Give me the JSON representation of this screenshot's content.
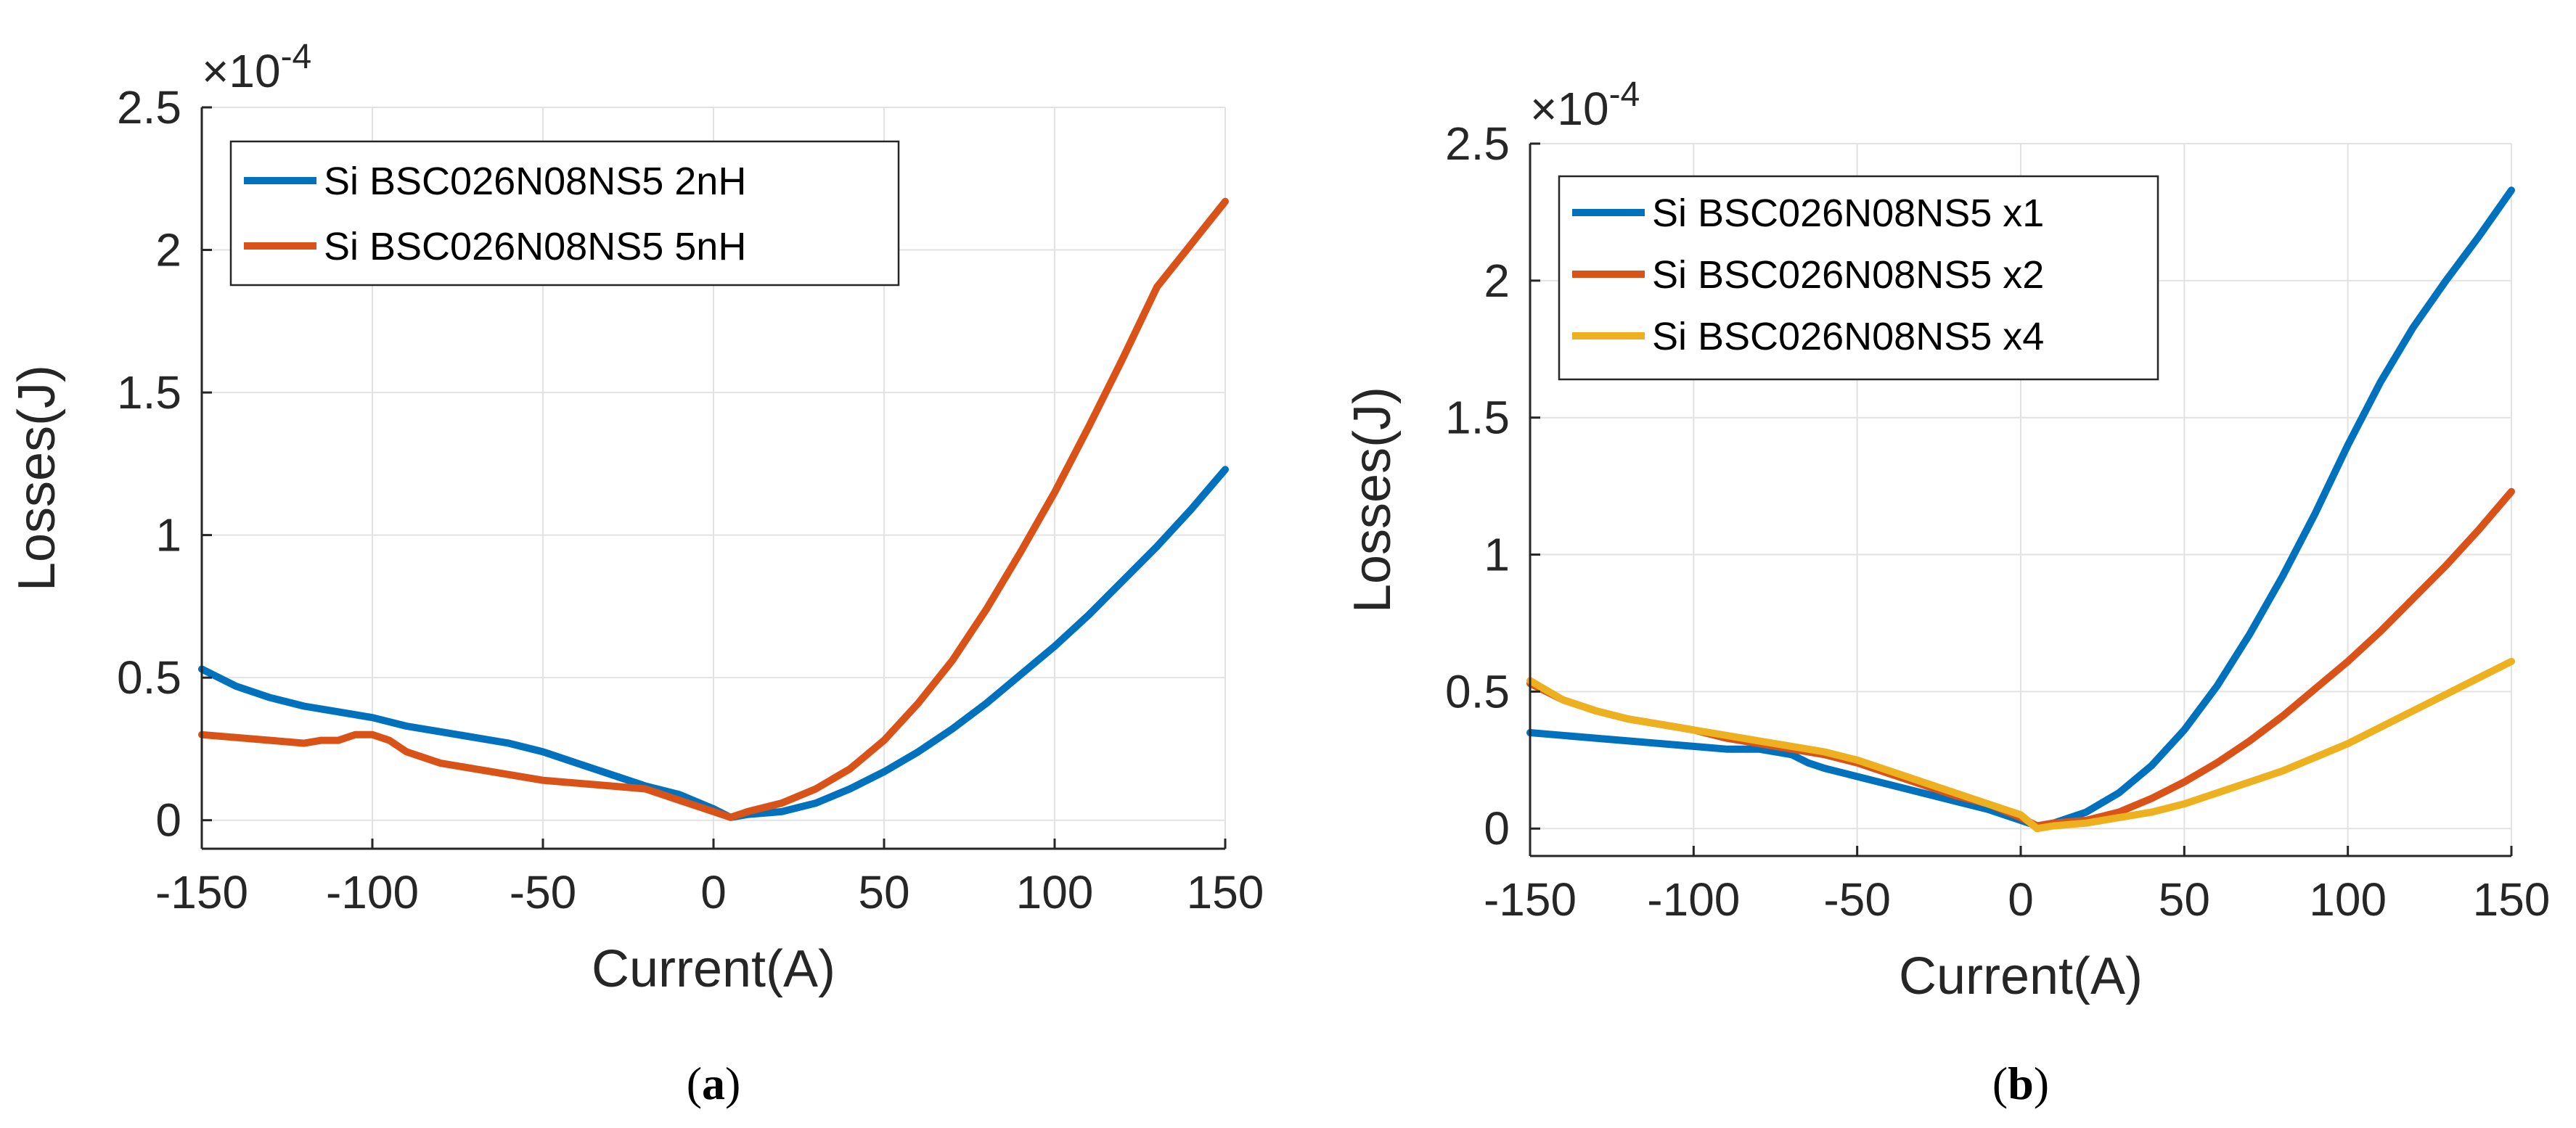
{
  "chart_data": [
    {
      "id": "a",
      "type": "line",
      "caption_open": "(",
      "caption_letter": "a",
      "caption_close": ")",
      "xlabel": "Current(A)",
      "ylabel": "Losses(J)",
      "exponent_base": "×10",
      "exponent_power": "-4",
      "xlim": [
        -150,
        150
      ],
      "ylim": [
        -0.1,
        2.5
      ],
      "xticks": [
        -150,
        -100,
        -50,
        0,
        50,
        100,
        150
      ],
      "xtick_labels": [
        "-150",
        "-100",
        "-50",
        "0",
        "50",
        "100",
        "150"
      ],
      "yticks": [
        0,
        0.5,
        1,
        1.5,
        2,
        2.5
      ],
      "ytick_labels": [
        "0",
        "0.5",
        "1",
        "1.5",
        "2",
        "2.5"
      ],
      "grid": true,
      "legend_position": "top-left",
      "series": [
        {
          "name": "Si BSC026N08NS5 2nH",
          "color": "#0072BD",
          "x": [
            -150,
            -140,
            -130,
            -120,
            -110,
            -100,
            -90,
            -80,
            -70,
            -60,
            -50,
            -40,
            -30,
            -20,
            -10,
            0,
            5,
            10,
            20,
            30,
            40,
            50,
            60,
            70,
            80,
            90,
            100,
            110,
            120,
            130,
            140,
            150
          ],
          "y": [
            0.53,
            0.47,
            0.43,
            0.4,
            0.38,
            0.36,
            0.33,
            0.31,
            0.29,
            0.27,
            0.24,
            0.2,
            0.16,
            0.12,
            0.09,
            0.04,
            0.01,
            0.02,
            0.03,
            0.06,
            0.11,
            0.17,
            0.24,
            0.32,
            0.41,
            0.51,
            0.61,
            0.72,
            0.84,
            0.96,
            1.09,
            1.23
          ]
        },
        {
          "name": "Si BSC026N08NS5 5nH",
          "color": "#D95319",
          "x": [
            -150,
            -140,
            -130,
            -120,
            -115,
            -110,
            -105,
            -100,
            -95,
            -90,
            -85,
            -80,
            -70,
            -60,
            -50,
            -40,
            -30,
            -20,
            -10,
            0,
            5,
            10,
            20,
            30,
            40,
            50,
            60,
            70,
            80,
            90,
            100,
            110,
            120,
            130,
            140,
            150
          ],
          "y": [
            0.3,
            0.29,
            0.28,
            0.27,
            0.28,
            0.28,
            0.3,
            0.3,
            0.28,
            0.24,
            0.22,
            0.2,
            0.18,
            0.16,
            0.14,
            0.13,
            0.12,
            0.11,
            0.07,
            0.03,
            0.01,
            0.03,
            0.06,
            0.11,
            0.18,
            0.28,
            0.41,
            0.56,
            0.74,
            0.94,
            1.15,
            1.38,
            1.62,
            1.87,
            2.02,
            2.17
          ]
        }
      ]
    },
    {
      "id": "b",
      "type": "line",
      "caption_open": "(",
      "caption_letter": "b",
      "caption_close": ")",
      "xlabel": "Current(A)",
      "ylabel": "Losses(J)",
      "exponent_base": "×10",
      "exponent_power": "-4",
      "xlim": [
        -150,
        150
      ],
      "ylim": [
        -0.1,
        2.5
      ],
      "xticks": [
        -150,
        -100,
        -50,
        0,
        50,
        100,
        150
      ],
      "xtick_labels": [
        "-150",
        "-100",
        "-50",
        "0",
        "50",
        "100",
        "150"
      ],
      "yticks": [
        0,
        0.5,
        1,
        1.5,
        2,
        2.5
      ],
      "ytick_labels": [
        "0",
        "0.5",
        "1",
        "1.5",
        "2",
        "2.5"
      ],
      "grid": true,
      "legend_position": "top-left",
      "series": [
        {
          "name": "Si BSC026N08NS5 x1",
          "color": "#0072BD",
          "x": [
            -150,
            -140,
            -130,
            -120,
            -110,
            -100,
            -90,
            -80,
            -70,
            -65,
            -60,
            -50,
            -40,
            -30,
            -20,
            -10,
            0,
            5,
            10,
            20,
            30,
            40,
            50,
            60,
            70,
            80,
            90,
            100,
            110,
            120,
            130,
            140,
            150
          ],
          "y": [
            0.35,
            0.34,
            0.33,
            0.32,
            0.31,
            0.3,
            0.29,
            0.29,
            0.27,
            0.24,
            0.22,
            0.19,
            0.16,
            0.13,
            0.1,
            0.07,
            0.03,
            0.01,
            0.02,
            0.06,
            0.13,
            0.23,
            0.36,
            0.52,
            0.71,
            0.92,
            1.15,
            1.4,
            1.63,
            1.83,
            2.0,
            2.16,
            2.33
          ]
        },
        {
          "name": "Si BSC026N08NS5 x2",
          "color": "#D95319",
          "x": [
            -150,
            -140,
            -130,
            -120,
            -110,
            -100,
            -90,
            -80,
            -70,
            -60,
            -50,
            -40,
            -30,
            -20,
            -10,
            0,
            5,
            10,
            20,
            30,
            40,
            50,
            60,
            70,
            80,
            90,
            100,
            110,
            120,
            130,
            140,
            150
          ],
          "y": [
            0.53,
            0.47,
            0.43,
            0.4,
            0.38,
            0.36,
            0.33,
            0.31,
            0.29,
            0.27,
            0.24,
            0.2,
            0.16,
            0.12,
            0.09,
            0.04,
            0.01,
            0.02,
            0.03,
            0.06,
            0.11,
            0.17,
            0.24,
            0.32,
            0.41,
            0.51,
            0.61,
            0.72,
            0.84,
            0.96,
            1.09,
            1.23
          ]
        },
        {
          "name": "Si BSC026N08NS5 x4",
          "color": "#EDB120",
          "x": [
            -150,
            -140,
            -130,
            -120,
            -110,
            -100,
            -90,
            -80,
            -70,
            -60,
            -50,
            -40,
            -30,
            -20,
            -10,
            0,
            5,
            10,
            20,
            30,
            40,
            50,
            60,
            70,
            80,
            90,
            100,
            110,
            120,
            130,
            140,
            150
          ],
          "y": [
            0.54,
            0.47,
            0.43,
            0.4,
            0.38,
            0.36,
            0.34,
            0.32,
            0.3,
            0.28,
            0.25,
            0.21,
            0.17,
            0.13,
            0.09,
            0.05,
            0.0,
            0.01,
            0.02,
            0.04,
            0.06,
            0.09,
            0.13,
            0.17,
            0.21,
            0.26,
            0.31,
            0.37,
            0.43,
            0.49,
            0.55,
            0.61
          ]
        }
      ]
    }
  ]
}
